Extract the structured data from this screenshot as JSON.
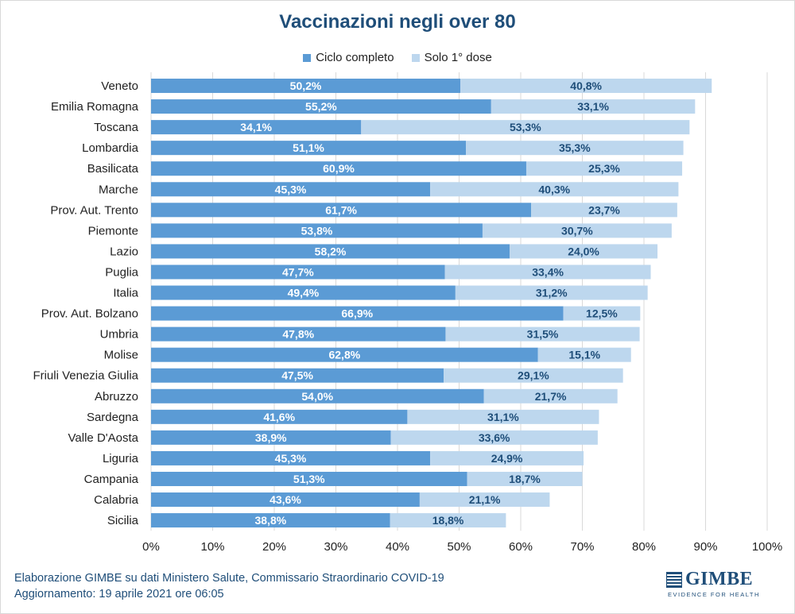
{
  "chart_data": {
    "type": "bar",
    "orientation": "horizontal",
    "stacked": true,
    "title": "Vaccinazioni negli over 80",
    "categories": [
      "Veneto",
      "Emilia Romagna",
      "Toscana",
      "Lombardia",
      "Basilicata",
      "Marche",
      "Prov. Aut. Trento",
      "Piemonte",
      "Lazio",
      "Puglia",
      "Italia",
      "Prov. Aut. Bolzano",
      "Umbria",
      "Molise",
      "Friuli Venezia Giulia",
      "Abruzzo",
      "Sardegna",
      "Valle D'Aosta",
      "Liguria",
      "Campania",
      "Calabria",
      "Sicilia"
    ],
    "series": [
      {
        "name": "Ciclo completo",
        "color": "#5b9bd5",
        "values": [
          50.2,
          55.2,
          34.1,
          51.1,
          60.9,
          45.3,
          61.7,
          53.8,
          58.2,
          47.7,
          49.4,
          66.9,
          47.8,
          62.8,
          47.5,
          54.0,
          41.6,
          38.9,
          45.3,
          51.3,
          43.6,
          38.8
        ],
        "labels": [
          "50,2%",
          "55,2%",
          "34,1%",
          "51,1%",
          "60,9%",
          "45,3%",
          "61,7%",
          "53,8%",
          "58,2%",
          "47,7%",
          "49,4%",
          "66,9%",
          "47,8%",
          "62,8%",
          "47,5%",
          "54,0%",
          "41,6%",
          "38,9%",
          "45,3%",
          "51,3%",
          "43,6%",
          "38,8%"
        ]
      },
      {
        "name": "Solo 1° dose",
        "color": "#bdd7ee",
        "values": [
          40.8,
          33.1,
          53.3,
          35.3,
          25.3,
          40.3,
          23.7,
          30.7,
          24.0,
          33.4,
          31.2,
          12.5,
          31.5,
          15.1,
          29.1,
          21.7,
          31.1,
          33.6,
          24.9,
          18.7,
          21.1,
          18.8
        ],
        "labels": [
          "40,8%",
          "33,1%",
          "53,3%",
          "35,3%",
          "25,3%",
          "40,3%",
          "23,7%",
          "30,7%",
          "24,0%",
          "33,4%",
          "31,2%",
          "12,5%",
          "31,5%",
          "15,1%",
          "29,1%",
          "21,7%",
          "31,1%",
          "33,6%",
          "24,9%",
          "18,7%",
          "21,1%",
          "18,8%"
        ]
      }
    ],
    "xlim": [
      0,
      100
    ],
    "xticks": [
      "0%",
      "10%",
      "20%",
      "30%",
      "40%",
      "50%",
      "60%",
      "70%",
      "80%",
      "90%",
      "100%"
    ],
    "grid": "vertical",
    "legend": "top-center"
  },
  "colors": {
    "title": "#1f4e79",
    "label_dark": "#1f4e79",
    "label_light": "#ffffff",
    "grid": "#d9d9d9"
  },
  "footer": {
    "line1": "Elaborazione GIMBE su dati Ministero Salute, Commissario Straordinario COVID-19",
    "line2": "Aggiornamento: 19 aprile 2021 ore 06:05"
  },
  "logo": {
    "name": "GIMBE",
    "tagline": "EVIDENCE FOR HEALTH"
  }
}
